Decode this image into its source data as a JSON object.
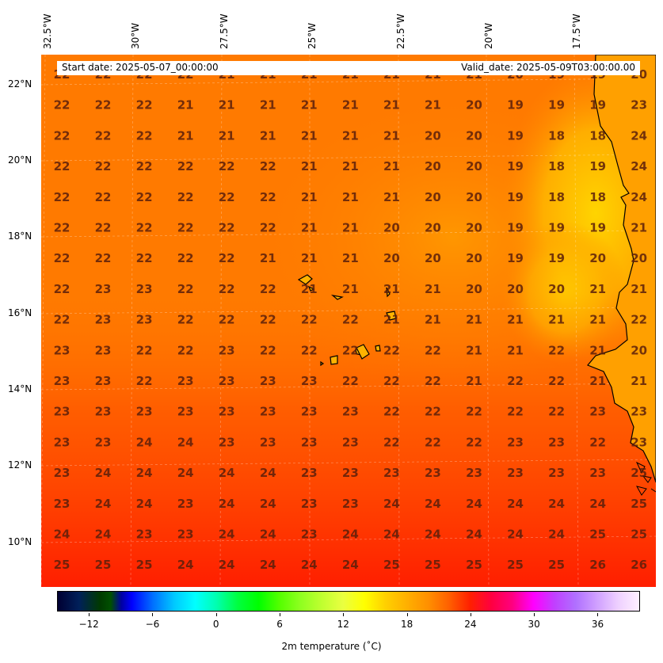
{
  "header": {
    "start_date": "Start date: 2025-05-07_00:00:00",
    "valid_date": "Valid_date: 2025-05-09T03:00:00.00"
  },
  "lon_labels": [
    "32.5°W",
    "30°W",
    "27.5°W",
    "25°W",
    "22.5°W",
    "20°W",
    "17.5°W"
  ],
  "lat_labels": [
    "22°N",
    "20°N",
    "18°N",
    "16°N",
    "14°N",
    "12°N",
    "10°N"
  ],
  "grid_values": [
    [
      22,
      22,
      22,
      22,
      21,
      21,
      21,
      21,
      21,
      21,
      21,
      20,
      19,
      19,
      20
    ],
    [
      22,
      22,
      22,
      21,
      21,
      21,
      21,
      21,
      21,
      21,
      20,
      19,
      19,
      19,
      23
    ],
    [
      22,
      22,
      22,
      21,
      21,
      21,
      21,
      21,
      21,
      20,
      20,
      19,
      18,
      18,
      24
    ],
    [
      22,
      22,
      22,
      22,
      22,
      22,
      21,
      21,
      21,
      20,
      20,
      19,
      18,
      19,
      24
    ],
    [
      22,
      22,
      22,
      22,
      22,
      22,
      21,
      21,
      21,
      20,
      20,
      19,
      18,
      18,
      24
    ],
    [
      22,
      22,
      22,
      22,
      22,
      22,
      21,
      21,
      20,
      20,
      20,
      19,
      19,
      19,
      21
    ],
    [
      22,
      22,
      22,
      22,
      22,
      21,
      21,
      21,
      20,
      20,
      20,
      19,
      19,
      20,
      20
    ],
    [
      22,
      23,
      23,
      22,
      22,
      22,
      21,
      21,
      21,
      21,
      20,
      20,
      20,
      21,
      21
    ],
    [
      22,
      23,
      23,
      22,
      22,
      22,
      22,
      22,
      21,
      21,
      21,
      21,
      21,
      21,
      22
    ],
    [
      23,
      23,
      22,
      22,
      23,
      22,
      22,
      22,
      22,
      22,
      21,
      21,
      22,
      21,
      20
    ],
    [
      23,
      23,
      22,
      23,
      23,
      23,
      23,
      22,
      22,
      22,
      21,
      22,
      22,
      21,
      21
    ],
    [
      23,
      23,
      23,
      23,
      23,
      23,
      23,
      23,
      22,
      22,
      22,
      22,
      22,
      23,
      23
    ],
    [
      23,
      23,
      24,
      24,
      23,
      23,
      23,
      23,
      22,
      22,
      22,
      23,
      23,
      22,
      23
    ],
    [
      23,
      24,
      24,
      24,
      24,
      24,
      23,
      23,
      23,
      23,
      23,
      23,
      23,
      23,
      25
    ],
    [
      23,
      24,
      24,
      23,
      24,
      24,
      23,
      23,
      24,
      24,
      24,
      24,
      24,
      24,
      25
    ],
    [
      24,
      24,
      23,
      23,
      24,
      24,
      23,
      24,
      24,
      24,
      24,
      24,
      24,
      25,
      25
    ],
    [
      25,
      25,
      25,
      24,
      24,
      24,
      24,
      24,
      25,
      25,
      25,
      25,
      25,
      26,
      26
    ]
  ],
  "colorbar": {
    "min": -15,
    "max": 40,
    "ticks": [
      "−12",
      "−6",
      "0",
      "6",
      "12",
      "18",
      "24",
      "30",
      "36"
    ],
    "tick_values": [
      -12,
      -6,
      0,
      6,
      12,
      18,
      24,
      30,
      36
    ],
    "title": "2m temperature (˚C)"
  }
}
